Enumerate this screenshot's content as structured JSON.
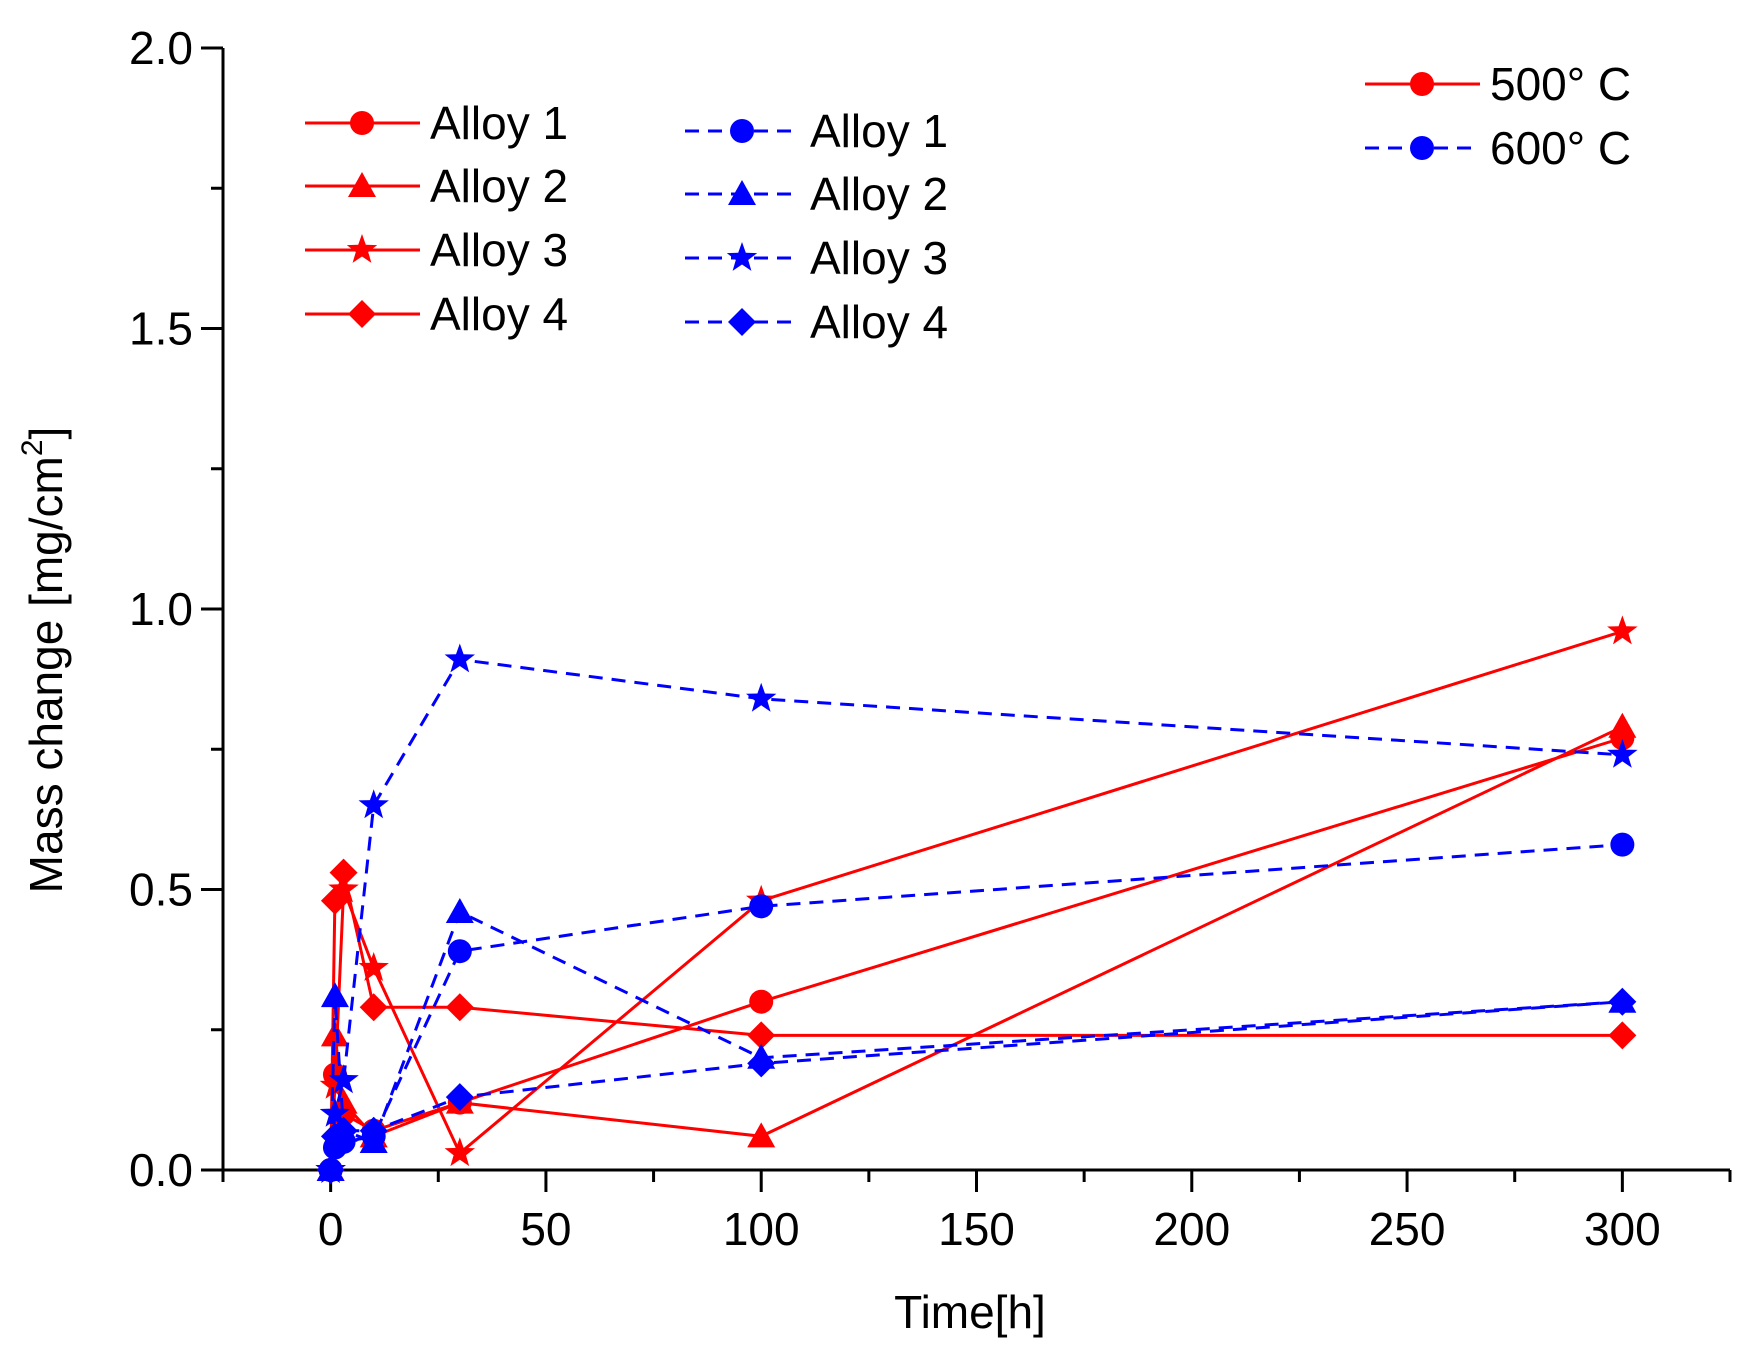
{
  "chart_data": {
    "type": "line",
    "title": "",
    "xlabel": "Time[h]",
    "ylabel": "Mass change [mg/cm",
    "ylabel_superscript": "2",
    "ylabel_close": "]",
    "xlim": [
      -25,
      325
    ],
    "ylim": [
      0.0,
      2.0
    ],
    "x_ticks": [
      0,
      50,
      100,
      150,
      200,
      250,
      300
    ],
    "y_ticks": [
      0.0,
      0.5,
      1.0,
      1.5,
      2.0
    ],
    "x_tick_labels": [
      "0",
      "50",
      "100",
      "150",
      "200",
      "250",
      "300"
    ],
    "y_tick_labels": [
      "0.0",
      "0.5",
      "1.0",
      "1.5",
      "2.0"
    ],
    "grid": false,
    "colors": {
      "c500": "#ff0000",
      "c600": "#0000ff"
    },
    "series": [
      {
        "name": "Alloy 1",
        "temperature": "500° C",
        "marker": "circle",
        "dashed": false,
        "x": [
          0,
          1,
          3,
          10,
          30,
          100,
          300
        ],
        "y": [
          0.0,
          0.17,
          0.1,
          0.07,
          0.12,
          0.3,
          0.77
        ]
      },
      {
        "name": "Alloy 2",
        "temperature": "500° C",
        "marker": "triangle",
        "dashed": false,
        "x": [
          0,
          1,
          3,
          10,
          30,
          100,
          300
        ],
        "y": [
          0.0,
          0.24,
          0.12,
          0.06,
          0.12,
          0.06,
          0.79
        ]
      },
      {
        "name": "Alloy 3",
        "temperature": "500° C",
        "marker": "star",
        "dashed": false,
        "x": [
          0,
          1,
          3,
          10,
          30,
          100,
          300
        ],
        "y": [
          0.0,
          0.15,
          0.5,
          0.36,
          0.03,
          0.48,
          0.96
        ]
      },
      {
        "name": "Alloy 4",
        "temperature": "500° C",
        "marker": "diamond",
        "dashed": false,
        "x": [
          0,
          1,
          3,
          10,
          30,
          100,
          300
        ],
        "y": [
          0.0,
          0.48,
          0.53,
          0.29,
          0.29,
          0.24,
          0.24
        ]
      },
      {
        "name": "Alloy 1",
        "temperature": "600° C",
        "marker": "circle",
        "dashed": true,
        "x": [
          0,
          1,
          3,
          10,
          30,
          100,
          300
        ],
        "y": [
          0.0,
          0.04,
          0.05,
          0.06,
          0.39,
          0.47,
          0.58
        ]
      },
      {
        "name": "Alloy 2",
        "temperature": "600° C",
        "marker": "triangle",
        "dashed": true,
        "x": [
          0,
          1,
          3,
          10,
          30,
          100,
          300
        ],
        "y": [
          0.0,
          0.31,
          0.07,
          0.05,
          0.46,
          0.2,
          0.3
        ]
      },
      {
        "name": "Alloy 3",
        "temperature": "600° C",
        "marker": "star",
        "dashed": true,
        "x": [
          0,
          1,
          3,
          10,
          30,
          100,
          300
        ],
        "y": [
          0.0,
          0.1,
          0.16,
          0.65,
          0.91,
          0.84,
          0.74
        ]
      },
      {
        "name": "Alloy 4",
        "temperature": "600° C",
        "marker": "diamond",
        "dashed": true,
        "x": [
          0,
          1,
          3,
          10,
          30,
          100,
          300
        ],
        "y": [
          0.0,
          0.06,
          0.07,
          0.07,
          0.13,
          0.19,
          0.3
        ]
      }
    ],
    "legend": {
      "placement": "top-left",
      "col500": [
        "Alloy 1",
        "Alloy 2",
        "Alloy 3",
        "Alloy 4"
      ],
      "col600": [
        "Alloy 1",
        "Alloy 2",
        "Alloy 3",
        "Alloy 4"
      ],
      "temp_legend_placement": "top-right",
      "temp_labels": [
        "500° C",
        "600° C"
      ]
    }
  }
}
